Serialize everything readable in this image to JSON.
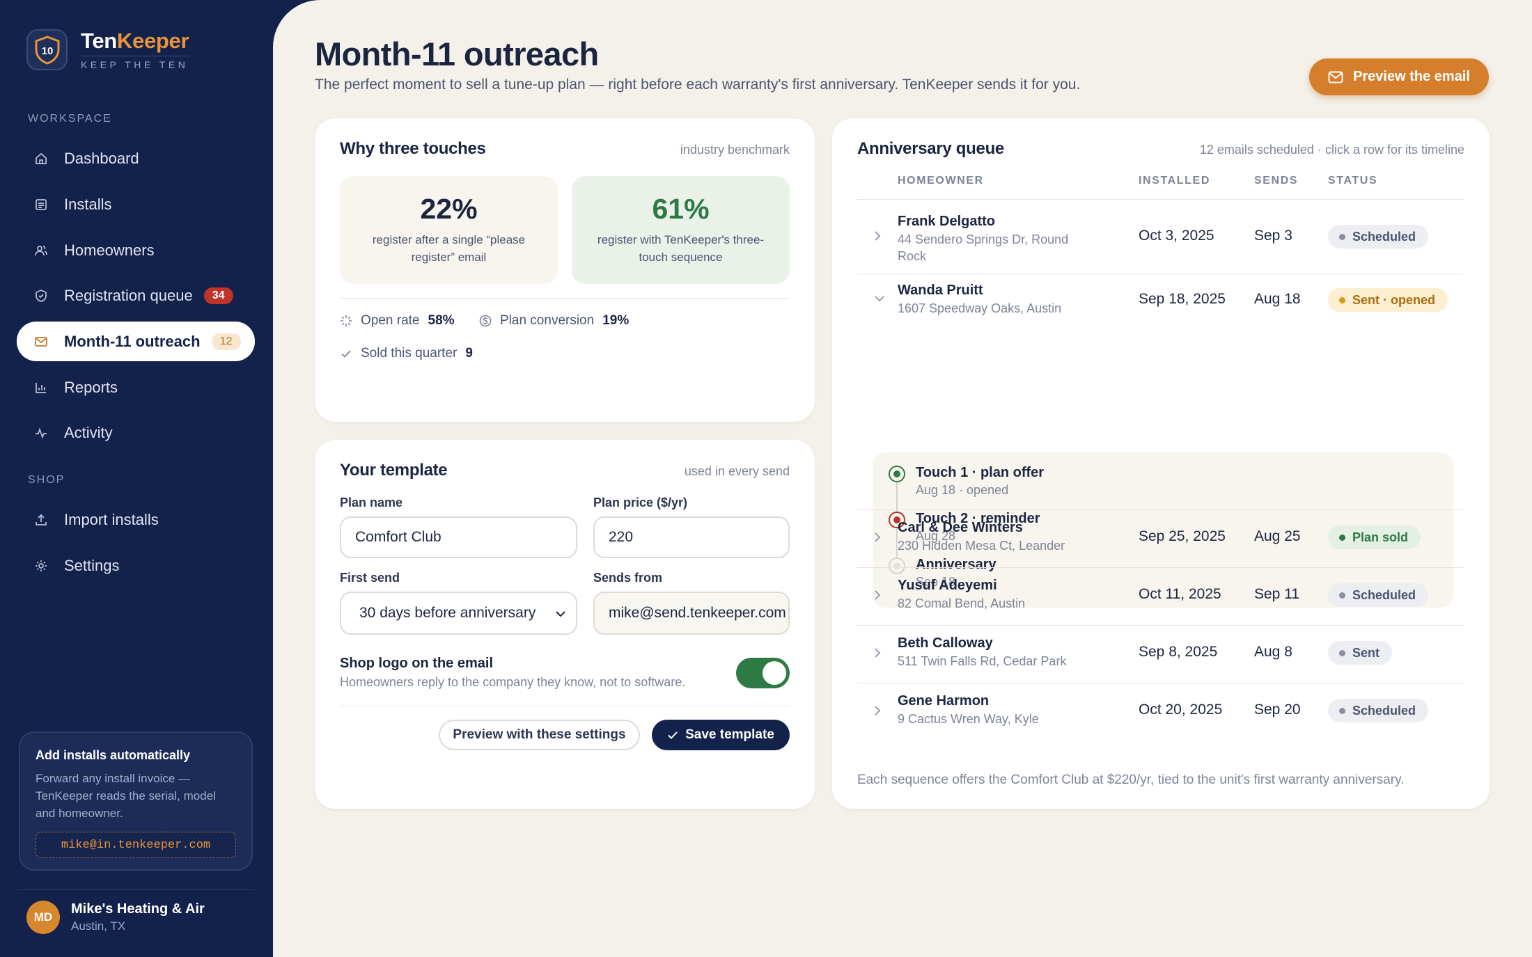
{
  "brand": {
    "name_a": "Ten",
    "name_b": "Keeper",
    "tagline": "KEEP THE TEN",
    "logo_text": "10"
  },
  "sidebar": {
    "workspace_label": "WORKSPACE",
    "shop_label": "SHOP",
    "items": [
      {
        "label": "Dashboard",
        "icon": "home-icon"
      },
      {
        "label": "Installs",
        "icon": "list-icon"
      },
      {
        "label": "Homeowners",
        "icon": "users-icon"
      },
      {
        "label": "Registration queue",
        "icon": "shield-icon",
        "badge": "34"
      },
      {
        "label": "Month-11 outreach",
        "icon": "mail-icon",
        "badge": "12",
        "active": true
      },
      {
        "label": "Reports",
        "icon": "chart-icon"
      },
      {
        "label": "Activity",
        "icon": "pulse-icon"
      }
    ],
    "shop_items": [
      {
        "label": "Import installs",
        "icon": "upload-icon"
      },
      {
        "label": "Settings",
        "icon": "gear-icon"
      }
    ],
    "auto_card": {
      "title": "Add installs automatically",
      "desc": "Forward any install invoice — TenKeeper reads the serial, model and homeowner.",
      "email": "mike@in.tenkeeper.com"
    },
    "account": {
      "initials": "MD",
      "name": "Mike's Heating & Air",
      "location": "Austin, TX"
    }
  },
  "page": {
    "title": "Month-11 outreach",
    "subtitle": "The perfect moment to sell a tune-up plan — right before each warranty's first anniversary. TenKeeper sends it for you.",
    "preview_label": "Preview the email"
  },
  "why": {
    "title": "Why three touches",
    "hint": "industry benchmark",
    "stat_a": {
      "value": "22%",
      "caption": "register after a single “please register” email"
    },
    "stat_b": {
      "value": "61%",
      "caption": "register with TenKeeper's three-touch sequence"
    },
    "open_rate_label": "Open rate",
    "open_rate_value": "58%",
    "conversion_label": "Plan conversion",
    "conversion_value": "19%",
    "sold_label": "Sold this quarter",
    "sold_value": "9"
  },
  "template": {
    "title": "Your template",
    "hint": "used in every send",
    "plan_name_label": "Plan name",
    "plan_name_value": "Comfort Club",
    "plan_price_label": "Plan price ($/yr)",
    "plan_price_value": "220",
    "first_send_label": "First send",
    "first_send_value": "30 days before anniversary",
    "sends_from_label": "Sends from",
    "sends_from_value": "mike@send.tenkeeper.com",
    "logo_title": "Shop logo on the email",
    "logo_desc": "Homeowners reply to the company they know, not to software.",
    "logo_enabled": true,
    "preview_settings_label": "Preview with these settings",
    "save_label": "Save template"
  },
  "queue": {
    "title": "Anniversary queue",
    "hint": "12 emails scheduled · click a row for its timeline",
    "col_homeowner": "HOMEOWNER",
    "col_installed": "INSTALLED",
    "col_sends": "SENDS",
    "col_status": "STATUS",
    "rows": [
      {
        "name": "Frank Delgatto",
        "address": "44 Sendero Springs Dr, Round Rock",
        "installed": "Oct 3, 2025",
        "sends": "Sep 3",
        "status": "Scheduled"
      },
      {
        "name": "Wanda Pruitt",
        "address": "1607 Speedway Oaks, Austin",
        "installed": "Sep 18, 2025",
        "sends": "Aug 18",
        "status": "Sent · opened"
      },
      {
        "name": "Carl & Dee Winters",
        "address": "230 Hidden Mesa Ct, Leander",
        "installed": "Sep 25, 2025",
        "sends": "Aug 25",
        "status": "Plan sold"
      },
      {
        "name": "Yusuf Adeyemi",
        "address": "82 Comal Bend, Austin",
        "installed": "Oct 11, 2025",
        "sends": "Sep 11",
        "status": "Scheduled"
      },
      {
        "name": "Beth Calloway",
        "address": "511 Twin Falls Rd, Cedar Park",
        "installed": "Sep 8, 2025",
        "sends": "Aug 8",
        "status": "Sent"
      },
      {
        "name": "Gene Harmon",
        "address": "9 Cactus Wren Way, Kyle",
        "installed": "Oct 20, 2025",
        "sends": "Sep 20",
        "status": "Scheduled"
      }
    ],
    "timeline": [
      {
        "title": "Touch 1 · plan offer",
        "sub": "Aug 18 · opened"
      },
      {
        "title": "Touch 2 · reminder",
        "sub": "Aug 28"
      },
      {
        "title": "Anniversary",
        "sub": "Sep 18"
      }
    ],
    "footer": "Each sequence offers the Comfort Club at $220/yr, tied to the unit's first warranty anniversary."
  },
  "colors": {
    "navy": "#13224a",
    "accent": "#d57f2c",
    "green": "#2e7a44",
    "red": "#c0332b",
    "cream": "#f4f1ea"
  }
}
